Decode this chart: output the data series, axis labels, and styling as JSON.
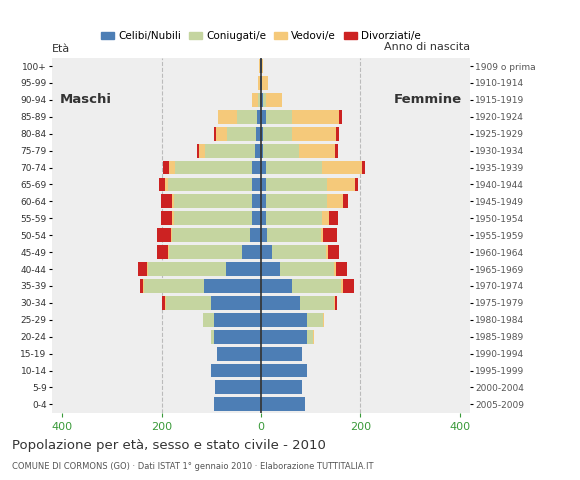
{
  "age_groups": [
    "100+",
    "95-99",
    "90-94",
    "85-89",
    "80-84",
    "75-79",
    "70-74",
    "65-69",
    "60-64",
    "55-59",
    "50-54",
    "45-49",
    "40-44",
    "35-39",
    "30-34",
    "25-29",
    "20-24",
    "15-19",
    "10-14",
    "5-9",
    "0-4"
  ],
  "birth_years": [
    "1909 o prima",
    "1910-1914",
    "1915-1919",
    "1920-1924",
    "1925-1929",
    "1930-1934",
    "1935-1939",
    "1940-1944",
    "1945-1949",
    "1950-1954",
    "1955-1959",
    "1960-1964",
    "1965-1969",
    "1970-1974",
    "1975-1979",
    "1980-1984",
    "1985-1989",
    "1990-1994",
    "1995-1999",
    "2000-2004",
    "2005-2009"
  ],
  "colors": {
    "celibe": "#4d7eb5",
    "coniugato": "#c5d5a0",
    "vedovo": "#f5c97a",
    "divorziato": "#cc2222"
  },
  "legend_labels": [
    "Celibi/Nubili",
    "Coniugati/e",
    "Vedovi/e",
    "Divorziati/e"
  ],
  "title": "Popolazione per età, sesso e stato civile - 2010",
  "subtitle": "COMUNE DI CORMONS (GO) · Dati ISTAT 1° gennaio 2010 · Elaborazione TUTTITALIA.IT",
  "ylabel_left": "Età",
  "ylabel_right": "Anno di nascita",
  "xlim": 420,
  "maschi_label": "Maschi",
  "femmine_label": "Femmine",
  "maschi": {
    "celibe": [
      2,
      2,
      2,
      8,
      10,
      12,
      18,
      18,
      18,
      18,
      22,
      38,
      70,
      115,
      100,
      95,
      95,
      88,
      100,
      92,
      95
    ],
    "coniugato": [
      0,
      0,
      5,
      40,
      58,
      100,
      155,
      170,
      158,
      158,
      158,
      148,
      158,
      120,
      92,
      22,
      5,
      0,
      0,
      0,
      0
    ],
    "vedovo": [
      2,
      5,
      12,
      38,
      22,
      12,
      12,
      6,
      3,
      3,
      2,
      2,
      2,
      2,
      2,
      0,
      0,
      0,
      0,
      0,
      0
    ],
    "divorziato": [
      0,
      0,
      0,
      0,
      5,
      5,
      12,
      12,
      22,
      22,
      28,
      22,
      18,
      6,
      5,
      0,
      0,
      0,
      0,
      0,
      0
    ]
  },
  "femmine": {
    "nubile": [
      2,
      2,
      5,
      10,
      5,
      5,
      10,
      10,
      10,
      10,
      12,
      22,
      38,
      62,
      78,
      92,
      92,
      82,
      92,
      82,
      88
    ],
    "coniugata": [
      0,
      0,
      5,
      52,
      58,
      72,
      112,
      122,
      122,
      112,
      108,
      108,
      108,
      98,
      68,
      32,
      12,
      0,
      0,
      0,
      0
    ],
    "vedova": [
      2,
      12,
      32,
      95,
      88,
      72,
      82,
      58,
      32,
      15,
      5,
      5,
      5,
      5,
      2,
      2,
      2,
      0,
      0,
      0,
      0
    ],
    "divorziata": [
      0,
      0,
      0,
      5,
      5,
      5,
      5,
      5,
      12,
      18,
      28,
      22,
      22,
      22,
      5,
      0,
      0,
      0,
      0,
      0,
      0
    ]
  },
  "background_color": "#ffffff",
  "plot_bg_color": "#eeeeee",
  "grid_color": "#bbbbbb",
  "tick_color": "#3a9a3a"
}
